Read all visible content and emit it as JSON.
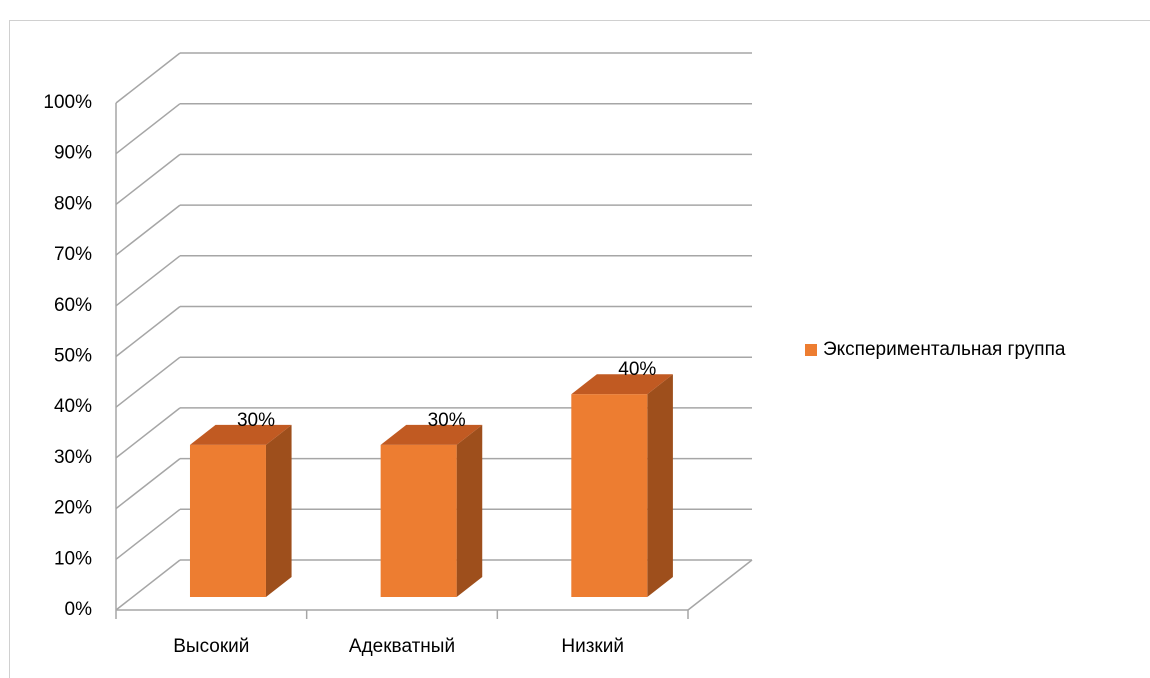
{
  "chart_data": {
    "type": "bar3d",
    "categories": [
      "Высокий",
      "Адекватный",
      "Низкий"
    ],
    "series": [
      {
        "name": "Экспериментальная группа",
        "color": "#ed7d31",
        "values": [
          30,
          30,
          40
        ],
        "value_labels": [
          "30%",
          "30%",
          "40%"
        ]
      }
    ],
    "ylim": [
      0,
      100
    ],
    "yticks": [
      {
        "value": 0,
        "label": "0%"
      },
      {
        "value": 10,
        "label": "10%"
      },
      {
        "value": 20,
        "label": "20%"
      },
      {
        "value": 30,
        "label": "30%"
      },
      {
        "value": 40,
        "label": "40%"
      },
      {
        "value": 50,
        "label": "50%"
      },
      {
        "value": 60,
        "label": "60%"
      },
      {
        "value": 70,
        "label": "70%"
      },
      {
        "value": 80,
        "label": "80%"
      },
      {
        "value": 90,
        "label": "90%"
      },
      {
        "value": 100,
        "label": "100%"
      }
    ],
    "grid": true,
    "legend": "right"
  }
}
